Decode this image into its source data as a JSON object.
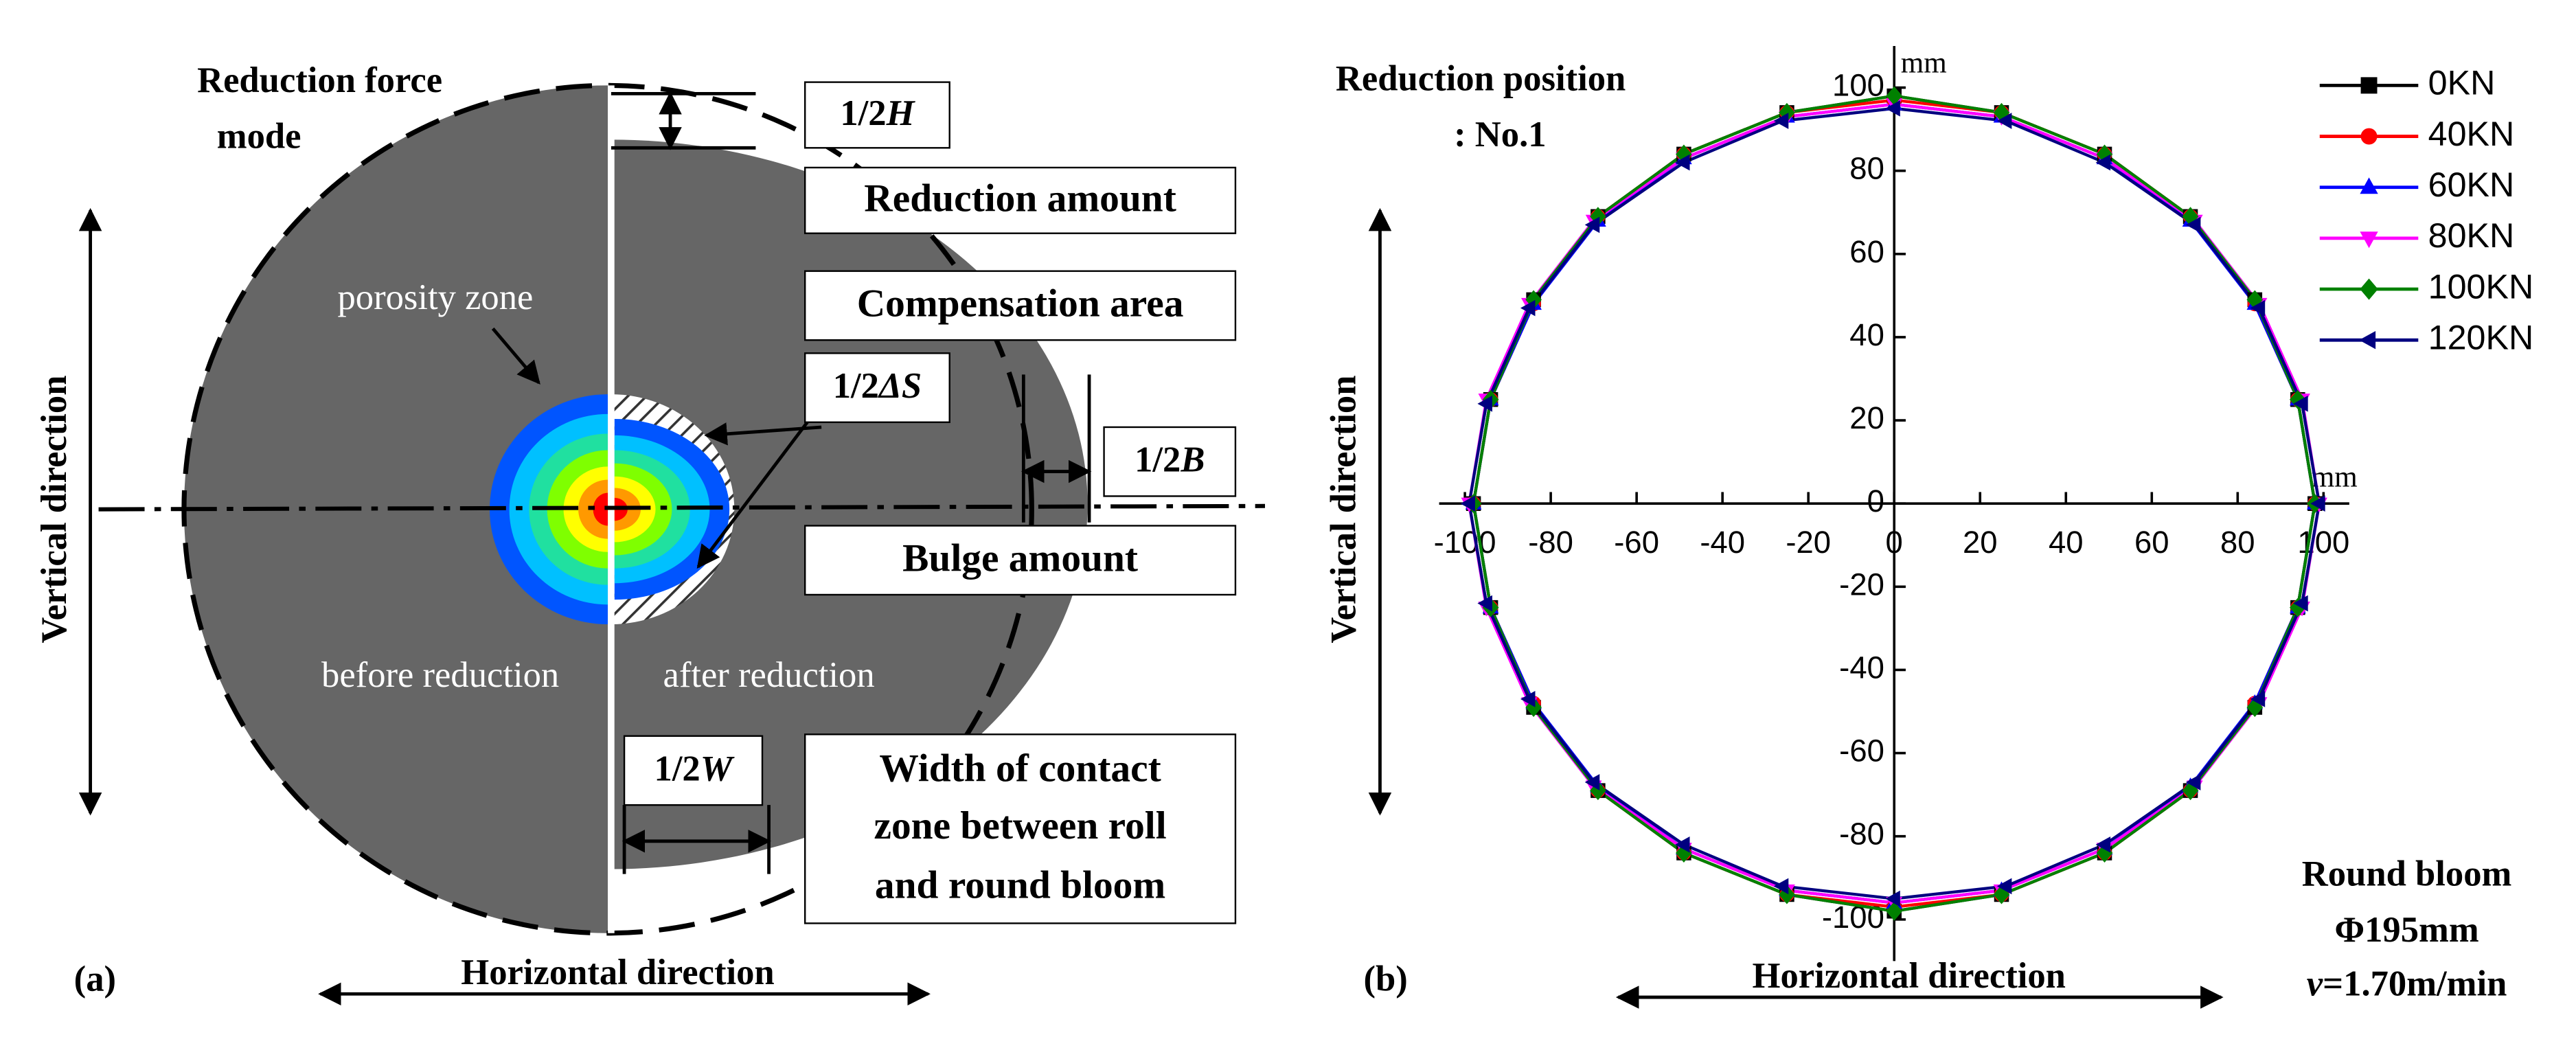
{
  "panel_a": {
    "label": "(a)",
    "title_lines": [
      "Reduction force",
      "mode"
    ],
    "vertical": "Vertical direction",
    "horizontal": "Horizontal direction",
    "porosity": "porosity zone",
    "before": "before reduction",
    "after": "after reduction",
    "half_h": [
      "1/2",
      "H"
    ],
    "reduction_amount": "Reduction amount",
    "compensation_area": "Compensation area",
    "half_ds": [
      "1/2",
      "ΔS"
    ],
    "half_b": [
      "1/2",
      "B"
    ],
    "bulge_amount": "Bulge amount",
    "half_w": [
      "1/2",
      "W"
    ],
    "contact_width": [
      "Width of contact",
      "zone between roll",
      "and round bloom"
    ]
  },
  "chart_data": {
    "type": "line",
    "label": "(b)",
    "annotation_lines": [
      "Reduction position",
      ": No.1"
    ],
    "xlabel": "Horizontal direction",
    "ylabel": "Vertical direction",
    "x_unit": "mm",
    "y_unit": "mm",
    "notes": [
      "Round bloom",
      "Φ195mm"
    ],
    "speed": [
      "v",
      "=1.70m/min"
    ],
    "xlim": [
      -106,
      106
    ],
    "ylim": [
      -110,
      110
    ],
    "xticks": [
      -100,
      -80,
      -60,
      -40,
      -20,
      0,
      20,
      40,
      60,
      80,
      100
    ],
    "yticks": [
      -100,
      -80,
      -60,
      -40,
      -20,
      0,
      20,
      40,
      60,
      80,
      100
    ],
    "legend": "upper right",
    "series": [
      {
        "name": "0KN",
        "color": "#000000",
        "marker": "square",
        "x": [
          98,
          94,
          84,
          69,
          49,
          25,
          0,
          -25,
          -49,
          -69,
          -84,
          -94,
          -98,
          -94,
          -84,
          -69,
          -49,
          -25,
          0,
          25,
          49,
          69,
          84,
          94
        ],
        "values": [
          0,
          25,
          49,
          69,
          84,
          94,
          98,
          94,
          84,
          69,
          49,
          25,
          0,
          -25,
          -49,
          -69,
          -84,
          -94,
          -98,
          -94,
          -84,
          -69,
          -49,
          -25
        ]
      },
      {
        "name": "40KN",
        "color": "#ff0000",
        "marker": "circle",
        "x": [
          98,
          94,
          84,
          69,
          49,
          25,
          0,
          -25,
          -49,
          -69,
          -84,
          -94,
          -98,
          -94,
          -84,
          -69,
          -49,
          -25,
          0,
          25,
          49,
          69,
          84,
          94
        ],
        "values": [
          0,
          25,
          48,
          69,
          84,
          94,
          97,
          94,
          84,
          69,
          48,
          25,
          0,
          -25,
          -48,
          -69,
          -84,
          -94,
          -97,
          -94,
          -84,
          -69,
          -48,
          -25
        ]
      },
      {
        "name": "60KN",
        "color": "#0000ff",
        "marker": "triangle-up",
        "x": [
          98,
          94,
          84,
          69,
          49,
          25,
          0,
          -25,
          -49,
          -69,
          -84,
          -94,
          -98,
          -94,
          -84,
          -69,
          -49,
          -25,
          0,
          25,
          49,
          69,
          84,
          94
        ],
        "values": [
          0,
          25,
          48,
          68,
          83,
          93,
          96,
          93,
          83,
          68,
          48,
          25,
          0,
          -25,
          -48,
          -68,
          -83,
          -93,
          -96,
          -93,
          -83,
          -68,
          -48,
          -25
        ]
      },
      {
        "name": "80KN",
        "color": "#ff00ff",
        "marker": "triangle-down",
        "x": [
          99,
          95,
          85,
          70,
          49,
          25,
          0,
          -25,
          -49,
          -70,
          -85,
          -95,
          -99,
          -95,
          -85,
          -70,
          -49,
          -25,
          0,
          25,
          49,
          70,
          85,
          95
        ],
        "values": [
          0,
          25,
          48,
          68,
          83,
          93,
          96,
          93,
          83,
          68,
          48,
          25,
          0,
          -25,
          -48,
          -68,
          -83,
          -93,
          -96,
          -93,
          -83,
          -68,
          -48,
          -25
        ]
      },
      {
        "name": "100KN",
        "color": "#008000",
        "marker": "diamond",
        "x": [
          98,
          94,
          84,
          69,
          49,
          25,
          0,
          -25,
          -49,
          -69,
          -84,
          -94,
          -98,
          -94,
          -84,
          -69,
          -49,
          -25,
          0,
          25,
          49,
          69,
          84,
          94
        ],
        "values": [
          0,
          25,
          49,
          69,
          84,
          94,
          98,
          94,
          84,
          69,
          49,
          25,
          0,
          -25,
          -49,
          -69,
          -84,
          -94,
          -98,
          -94,
          -84,
          -69,
          -49,
          -25
        ]
      },
      {
        "name": "120KN",
        "color": "#000080",
        "marker": "triangle-left",
        "x": [
          99,
          95,
          85,
          70,
          49,
          26,
          0,
          -26,
          -49,
          -70,
          -85,
          -95,
          -99,
          -95,
          -85,
          -70,
          -49,
          -26,
          0,
          26,
          49,
          70,
          85,
          95
        ],
        "values": [
          0,
          24,
          47,
          67,
          82,
          92,
          95,
          92,
          82,
          67,
          47,
          24,
          0,
          -24,
          -47,
          -67,
          -82,
          -92,
          -95,
          -92,
          -82,
          -67,
          -47,
          -24
        ]
      }
    ]
  }
}
